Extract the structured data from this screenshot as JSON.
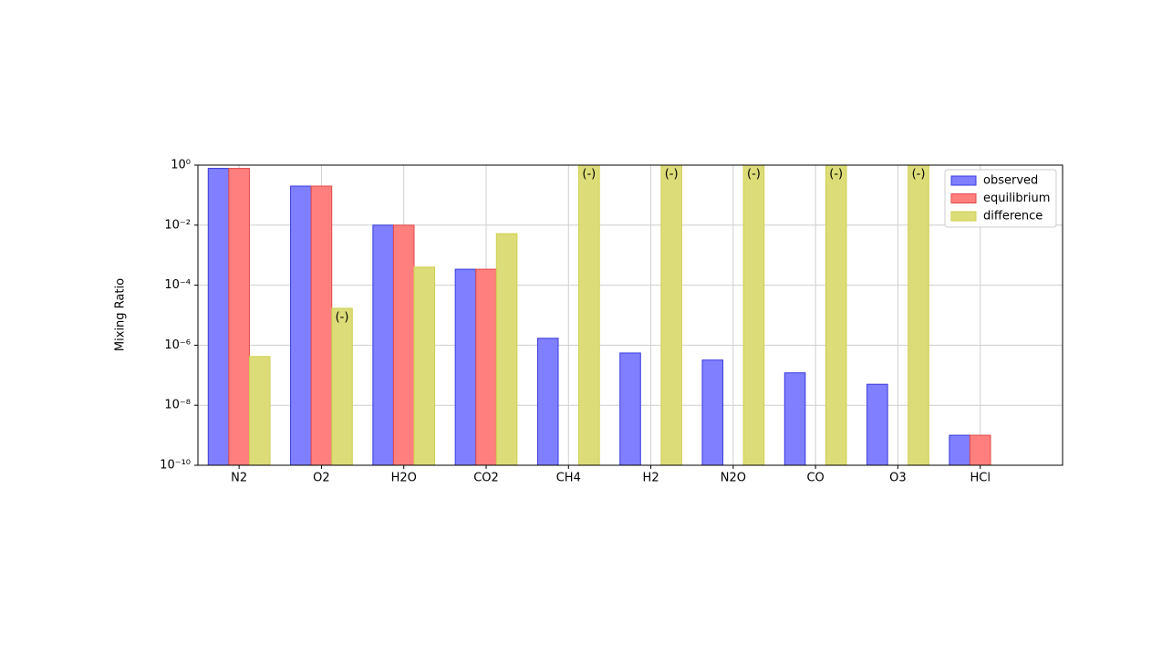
{
  "chart_data": {
    "type": "bar",
    "ylabel": "Mixing Ratio",
    "log_scale": true,
    "grid": true,
    "legend": "upper right",
    "categories": [
      "N2",
      "O2",
      "H2O",
      "CO2",
      "CH4",
      "H2",
      "N2O",
      "CO",
      "O3",
      "HCl"
    ],
    "series": [
      {
        "name": "observed",
        "color": "#7f7fff",
        "edge": "#3b3bdd",
        "values": [
          0.78,
          0.2,
          0.01,
          0.00034,
          1.7e-06,
          5.5e-07,
          3.2e-07,
          1.2e-07,
          5e-08,
          1e-09
        ]
      },
      {
        "name": "equilibrium",
        "color": "#ff7f7f",
        "edge": "#e04a4a",
        "values": [
          0.78,
          0.2,
          0.01,
          0.00034,
          null,
          null,
          null,
          null,
          null,
          1e-09
        ]
      },
      {
        "name": "difference",
        "color": "#dcdc78",
        "edge": "#cfcf50",
        "values": [
          4.2e-07,
          1.7e-05,
          0.0004,
          0.0052,
          1,
          1,
          1,
          1,
          1,
          null
        ],
        "negative": [
          false,
          true,
          false,
          false,
          true,
          true,
          true,
          true,
          true,
          false
        ]
      }
    ],
    "negative_label": "(-)",
    "ylim": [
      1e-10,
      1
    ],
    "yticks": [
      {
        "value": 1,
        "label": "10⁰"
      },
      {
        "value": 0.01,
        "label": "10⁻²"
      },
      {
        "value": 0.0001,
        "label": "10⁻⁴"
      },
      {
        "value": 1e-06,
        "label": "10⁻⁶"
      },
      {
        "value": 1e-08,
        "label": "10⁻⁸"
      },
      {
        "value": 1e-10,
        "label": "10⁻¹⁰"
      }
    ]
  }
}
